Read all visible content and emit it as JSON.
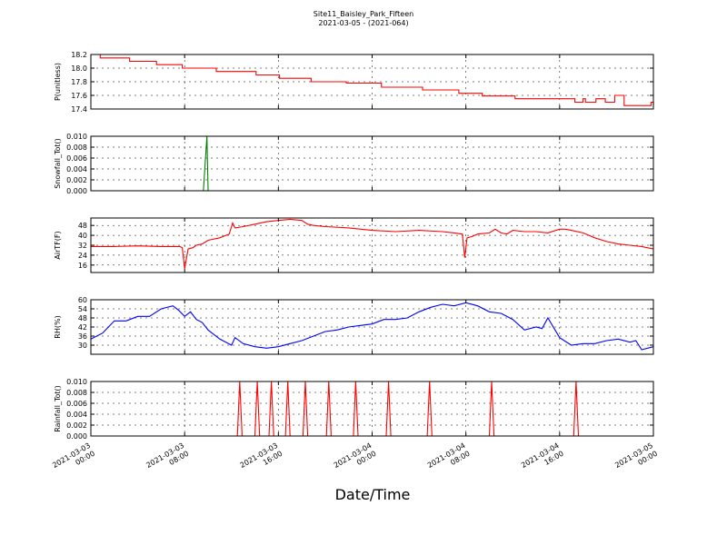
{
  "title": "Site11_Baisley_Park_Fifteen",
  "subtitle": "2021-03-05 - (2021-064)",
  "xlabel": "Date/Time",
  "x_ticks": [
    {
      "x": 0,
      "label": [
        "2021-03-03",
        "00:00"
      ]
    },
    {
      "x": 8,
      "label": [
        "2021-03-03",
        "08:00"
      ]
    },
    {
      "x": 16,
      "label": [
        "2021-03-03",
        "16:00"
      ]
    },
    {
      "x": 24,
      "label": [
        "2021-03-04",
        "00:00"
      ]
    },
    {
      "x": 32,
      "label": [
        "2021-03-04",
        "08:00"
      ]
    },
    {
      "x": 40,
      "label": [
        "2021-03-04",
        "16:00"
      ]
    },
    {
      "x": 48,
      "label": [
        "2021-03-05",
        "00:00"
      ]
    }
  ],
  "chart_data": [
    {
      "type": "line",
      "ylabel": "P(unitless)",
      "xlim": [
        0,
        48
      ],
      "ylim": [
        17.4,
        18.2
      ],
      "yticks": [
        17.4,
        17.6,
        17.8,
        18.0,
        18.2
      ],
      "tick_decimals": 1,
      "grid": true,
      "color": "#ff0000",
      "step": true,
      "x": [
        0,
        0.8,
        3.3,
        5.6,
        7.8,
        10.7,
        14.1,
        16.1,
        18.8,
        21.8,
        24.8,
        28.3,
        31.4,
        33.4,
        36.2,
        39.3,
        41.3,
        41.5,
        42,
        42.2,
        42.5,
        43.1,
        43.4,
        43.9,
        44.2,
        44.7,
        45.5,
        47.8,
        48
      ],
      "y": [
        18.2,
        18.15,
        18.1,
        18.05,
        18.0,
        17.95,
        17.9,
        17.85,
        17.8,
        17.78,
        17.72,
        17.68,
        17.63,
        17.59,
        17.55,
        17.55,
        17.5,
        17.5,
        17.55,
        17.5,
        17.5,
        17.55,
        17.55,
        17.5,
        17.5,
        17.6,
        17.45,
        17.5,
        17.45
      ]
    },
    {
      "type": "line",
      "ylabel": "Snowfall_Tot()",
      "xlim": [
        0,
        48
      ],
      "ylim": [
        0,
        0.01
      ],
      "yticks": [
        0,
        0.002,
        0.004,
        0.006,
        0.008,
        0.01
      ],
      "tick_decimals": 3,
      "grid": true,
      "color": "#008000",
      "step": false,
      "x": [
        0,
        9.5,
        9.6,
        9.9,
        10.0,
        48
      ],
      "y": [
        0,
        0,
        0,
        0.01,
        0,
        0
      ]
    },
    {
      "type": "line",
      "ylabel": "AirTF(F)",
      "xlim": [
        0,
        48
      ],
      "ylim": [
        10,
        54
      ],
      "yticks": [
        16,
        24,
        32,
        40,
        48
      ],
      "tick_decimals": 0,
      "grid": true,
      "color": "#ff0000",
      "step": false,
      "x": [
        0,
        2,
        4,
        6,
        7.6,
        7.8,
        8.0,
        8.3,
        8.7,
        9,
        9.5,
        10,
        11,
        11.8,
        12.1,
        12.3,
        13,
        14,
        15,
        16,
        17,
        18,
        18.5,
        19,
        20,
        22,
        24,
        26,
        28,
        30,
        31,
        31.7,
        31.9,
        32.1,
        32.5,
        33,
        34,
        34.5,
        35,
        35.5,
        36,
        37,
        38,
        39,
        40,
        40.5,
        41,
        42,
        43,
        44,
        45,
        46,
        47,
        48
      ],
      "y": [
        31,
        31,
        31.5,
        31,
        31,
        30,
        13,
        29,
        30,
        32,
        33,
        36,
        38,
        41,
        50,
        46,
        47,
        49,
        51,
        52,
        53,
        52,
        49,
        48,
        47,
        46,
        44,
        43,
        44,
        43,
        42,
        41,
        22,
        38,
        39,
        41,
        42,
        45,
        42,
        41,
        44,
        43,
        43,
        42,
        45,
        45,
        44,
        42,
        38,
        35,
        33,
        32,
        31,
        29
      ]
    },
    {
      "type": "line",
      "ylabel": "RH(%)",
      "xlim": [
        0,
        48
      ],
      "ylim": [
        24,
        60
      ],
      "yticks": [
        30,
        36,
        42,
        48,
        54,
        60
      ],
      "tick_decimals": 0,
      "grid": true,
      "color": "#0000ff",
      "step": false,
      "x": [
        0,
        1,
        2,
        3,
        4,
        5,
        6,
        7,
        7.5,
        8,
        8.5,
        9,
        9.5,
        10,
        11,
        12,
        12.3,
        13,
        14,
        15,
        16,
        17,
        18,
        19,
        20,
        21,
        22,
        23,
        24,
        25,
        26,
        27,
        28,
        29,
        30,
        31,
        32,
        33,
        34,
        35,
        36,
        37,
        38,
        38.5,
        39,
        40,
        41,
        42,
        43,
        44,
        45,
        46,
        46.5,
        47,
        48
      ],
      "y": [
        34,
        38,
        46,
        46,
        49,
        49,
        54,
        56,
        53,
        49,
        52,
        47,
        45,
        40,
        34,
        30,
        35,
        31,
        29,
        28,
        29,
        31,
        33,
        36,
        39,
        40,
        42,
        43,
        44,
        47,
        47,
        48,
        52,
        55,
        57,
        56,
        58,
        56,
        52,
        51,
        47,
        40,
        42,
        41,
        48,
        35,
        30,
        31,
        31,
        33,
        34,
        32,
        33,
        27,
        29
      ]
    },
    {
      "type": "line",
      "ylabel": "Rainfall_Tot()",
      "xlim": [
        0,
        48
      ],
      "ylim": [
        0,
        0.01
      ],
      "yticks": [
        0,
        0.002,
        0.004,
        0.006,
        0.008,
        0.01
      ],
      "tick_decimals": 3,
      "grid": true,
      "color": "#ff0000",
      "step": false,
      "x": [
        0,
        12.5,
        12.7,
        12.9,
        14.0,
        14.2,
        14.4,
        15.2,
        15.4,
        15.6,
        16.6,
        16.8,
        17.0,
        18.1,
        18.3,
        18.5,
        20.1,
        20.3,
        20.5,
        22.4,
        22.6,
        22.8,
        25.2,
        25.4,
        25.6,
        28.7,
        28.9,
        29.1,
        34.0,
        34.2,
        34.4,
        41.2,
        41.4,
        41.6,
        48
      ],
      "y": [
        0,
        0,
        0.01,
        0,
        0,
        0.01,
        0,
        0,
        0.01,
        0,
        0,
        0.01,
        0,
        0,
        0.01,
        0,
        0,
        0.01,
        0,
        0,
        0.01,
        0,
        0,
        0.01,
        0,
        0,
        0.01,
        0,
        0,
        0.01,
        0,
        0,
        0.01,
        0,
        0
      ]
    }
  ]
}
